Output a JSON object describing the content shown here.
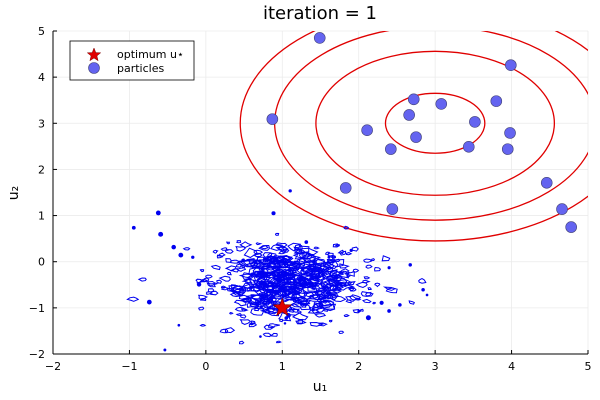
{
  "chart_data": {
    "type": "scatter",
    "title": "iteration = 1",
    "xlabel": "u₁",
    "ylabel": "u₂",
    "xlim": [
      -2,
      5
    ],
    "ylim": [
      -2,
      5
    ],
    "xticks": [
      "−2",
      "−1",
      "0",
      "1",
      "2",
      "3",
      "4",
      "5"
    ],
    "yticks": [
      "−2",
      "−1",
      "0",
      "1",
      "2",
      "3",
      "4",
      "5"
    ],
    "xtick_values": [
      -2,
      -1,
      0,
      1,
      2,
      3,
      4,
      5
    ],
    "ytick_values": [
      -2,
      -1,
      0,
      1,
      2,
      3,
      4,
      5
    ],
    "grid": true,
    "legend": {
      "placement": "top-left",
      "entries": [
        {
          "label": "optimum u⋆",
          "marker": "star",
          "color": "#e00000"
        },
        {
          "label": "particles",
          "marker": "circle",
          "color": "#6464f0"
        }
      ]
    },
    "optimum": {
      "x": 1.0,
      "y": -1.0
    },
    "particles": [
      {
        "x": 1.49,
        "y": 4.85
      },
      {
        "x": 3.99,
        "y": 4.26
      },
      {
        "x": 2.72,
        "y": 3.52
      },
      {
        "x": 3.08,
        "y": 3.42
      },
      {
        "x": 3.8,
        "y": 3.48
      },
      {
        "x": 2.66,
        "y": 3.18
      },
      {
        "x": 0.87,
        "y": 3.09
      },
      {
        "x": 3.52,
        "y": 3.03
      },
      {
        "x": 2.11,
        "y": 2.85
      },
      {
        "x": 2.75,
        "y": 2.7
      },
      {
        "x": 3.98,
        "y": 2.79
      },
      {
        "x": 3.44,
        "y": 2.49
      },
      {
        "x": 3.95,
        "y": 2.44
      },
      {
        "x": 2.42,
        "y": 2.44
      },
      {
        "x": 1.83,
        "y": 1.6
      },
      {
        "x": 4.46,
        "y": 1.71
      },
      {
        "x": 2.44,
        "y": 1.14
      },
      {
        "x": 4.66,
        "y": 1.14
      },
      {
        "x": 4.78,
        "y": 0.75
      }
    ],
    "prior_contours": {
      "center": [
        3,
        3
      ],
      "radii": [
        0.65,
        1.56,
        2.1,
        2.55
      ],
      "color": "#e00000"
    },
    "posterior_contours": {
      "center": [
        1.05,
        -0.45
      ],
      "spread": [
        0.8,
        0.7
      ],
      "color": "#0000f0"
    },
    "colors": {
      "axis": "#000000",
      "grid": "#ebebeb",
      "particle_edge": "#44447a"
    }
  }
}
